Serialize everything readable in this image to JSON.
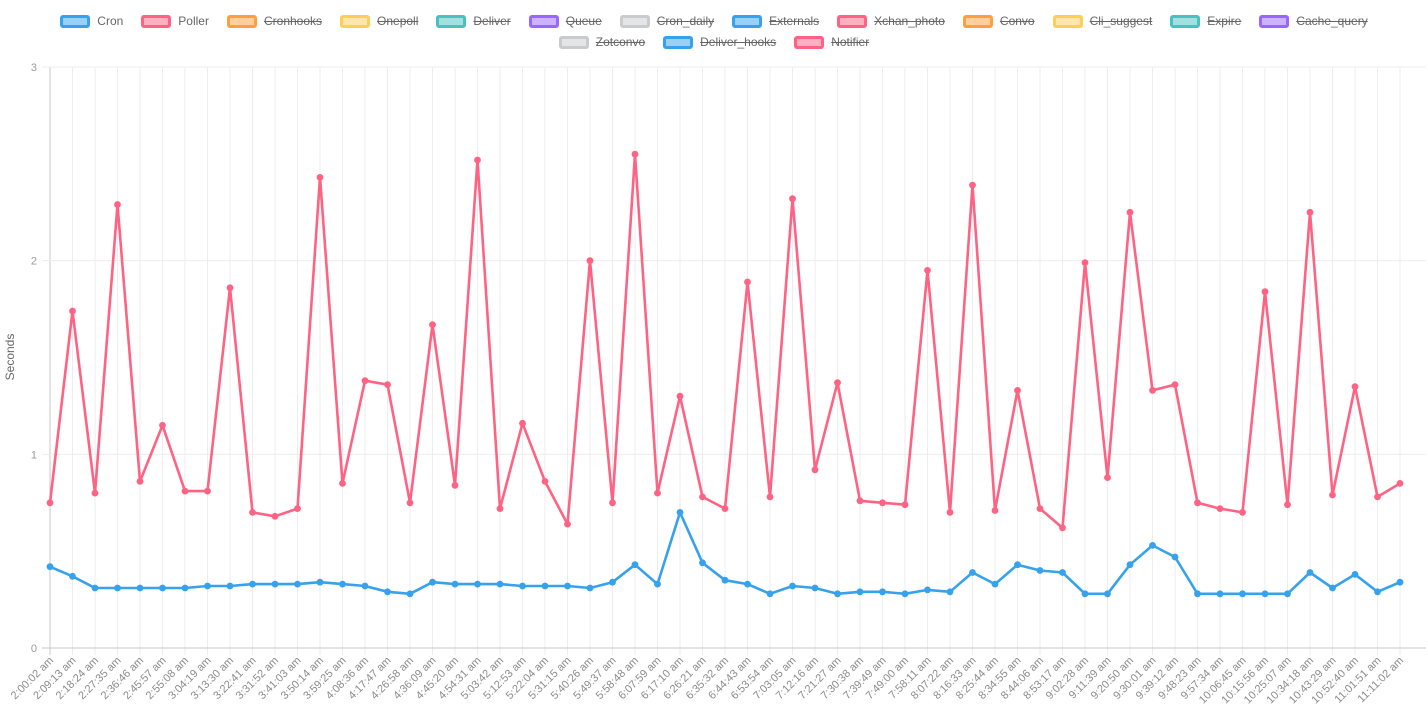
{
  "legend": {
    "palette": {
      "blue": {
        "border": "#36A2EB",
        "fill": "#9AD0F5"
      },
      "pink": {
        "border": "#FF6384",
        "fill": "#FFB1C1"
      },
      "orange": {
        "border": "#FF9F40",
        "fill": "#FFCF9F"
      },
      "yellow": {
        "border": "#FFCE56",
        "fill": "#FFE6AA"
      },
      "teal": {
        "border": "#4BC0C0",
        "fill": "#A5DFDF"
      },
      "purple": {
        "border": "#9966FF",
        "fill": "#CCB2FF"
      },
      "grey": {
        "border": "#C9CBCF",
        "fill": "#E4E5E7"
      }
    },
    "items": [
      {
        "label": "Cron",
        "color": "blue",
        "hidden": false
      },
      {
        "label": "Poller",
        "color": "pink",
        "hidden": false
      },
      {
        "label": "Cronhooks",
        "color": "orange",
        "hidden": true
      },
      {
        "label": "Onepoll",
        "color": "yellow",
        "hidden": true
      },
      {
        "label": "Deliver",
        "color": "teal",
        "hidden": true
      },
      {
        "label": "Queue",
        "color": "purple",
        "hidden": true
      },
      {
        "label": "Cron_daily",
        "color": "grey",
        "hidden": true
      },
      {
        "label": "Externals",
        "color": "blue",
        "hidden": true
      },
      {
        "label": "Xchan_photo",
        "color": "pink",
        "hidden": true
      },
      {
        "label": "Convo",
        "color": "orange",
        "hidden": true
      },
      {
        "label": "Cli_suggest",
        "color": "yellow",
        "hidden": true
      },
      {
        "label": "Expire",
        "color": "teal",
        "hidden": true
      },
      {
        "label": "Cache_query",
        "color": "purple",
        "hidden": true
      },
      {
        "label": "Zotconvo",
        "color": "grey",
        "hidden": true
      },
      {
        "label": "Deliver_hooks",
        "color": "blue",
        "hidden": true
      },
      {
        "label": "Notifier",
        "color": "pink",
        "hidden": true
      }
    ]
  },
  "chart_data": {
    "type": "line",
    "title": "",
    "xlabel": "",
    "ylabel": "Seconds",
    "ylim": [
      0,
      3
    ],
    "yticks": [
      0,
      1,
      2,
      3
    ],
    "grid": true,
    "legend_position": "top",
    "x": [
      "2:00:02 am",
      "2:09:13 am",
      "2:18:24 am",
      "2:27:35 am",
      "2:36:46 am",
      "2:45:57 am",
      "2:55:08 am",
      "3:04:19 am",
      "3:13:30 am",
      "3:22:41 am",
      "3:31:52 am",
      "3:41:03 am",
      "3:50:14 am",
      "3:59:25 am",
      "4:08:36 am",
      "4:17:47 am",
      "4:26:58 am",
      "4:36:09 am",
      "4:45:20 am",
      "4:54:31 am",
      "5:03:42 am",
      "5:12:53 am",
      "5:22:04 am",
      "5:31:15 am",
      "5:40:26 am",
      "5:49:37 am",
      "5:58:48 am",
      "6:07:59 am",
      "6:17:10 am",
      "6:26:21 am",
      "6:35:32 am",
      "6:44:43 am",
      "6:53:54 am",
      "7:03:05 am",
      "7:12:16 am",
      "7:21:27 am",
      "7:30:38 am",
      "7:39:49 am",
      "7:49:00 am",
      "7:58:11 am",
      "8:07:22 am",
      "8:16:33 am",
      "8:25:44 am",
      "8:34:55 am",
      "8:44:06 am",
      "8:53:17 am",
      "9:02:28 am",
      "9:11:39 am",
      "9:20:50 am",
      "9:30:01 am",
      "9:39:12 am",
      "9:48:23 am",
      "9:57:34 am",
      "10:06:45 am",
      "10:15:56 am",
      "10:25:07 am",
      "10:34:18 am",
      "10:43:29 am",
      "10:52:40 am",
      "11:01:51 am",
      "11:11:02 am"
    ],
    "series": [
      {
        "name": "Cron",
        "color": "#36A2EB",
        "values": [
          0.42,
          0.37,
          0.31,
          0.31,
          0.31,
          0.31,
          0.31,
          0.32,
          0.32,
          0.33,
          0.33,
          0.33,
          0.34,
          0.33,
          0.32,
          0.29,
          0.28,
          0.34,
          0.33,
          0.33,
          0.33,
          0.32,
          0.32,
          0.32,
          0.31,
          0.34,
          0.43,
          0.33,
          0.7,
          0.44,
          0.35,
          0.33,
          0.28,
          0.32,
          0.31,
          0.28,
          0.29,
          0.29,
          0.28,
          0.3,
          0.29,
          0.39,
          0.33,
          0.43,
          0.4,
          0.39,
          0.28,
          0.28,
          0.43,
          0.53,
          0.47,
          0.28,
          0.28,
          0.28,
          0.28,
          0.28,
          0.39,
          0.31,
          0.38,
          0.29,
          0.34
        ]
      },
      {
        "name": "Poller",
        "color": "#FF6384",
        "values": [
          0.75,
          1.74,
          0.8,
          2.29,
          0.86,
          1.15,
          0.81,
          0.81,
          1.86,
          0.7,
          0.68,
          0.72,
          2.43,
          0.85,
          1.38,
          1.36,
          0.75,
          1.67,
          0.84,
          2.52,
          0.72,
          1.16,
          0.86,
          0.64,
          2.0,
          0.75,
          2.55,
          0.8,
          1.3,
          0.78,
          0.72,
          1.89,
          0.78,
          2.32,
          0.92,
          1.37,
          0.76,
          0.75,
          0.74,
          1.95,
          0.7,
          2.39,
          0.71,
          1.33,
          0.72,
          0.62,
          1.99,
          0.88,
          2.25,
          1.33,
          1.36,
          0.75,
          0.72,
          0.7,
          1.84,
          0.74,
          2.25,
          0.79,
          1.35,
          0.78,
          0.85
        ]
      }
    ],
    "hidden_series": [
      "Cronhooks",
      "Onepoll",
      "Deliver",
      "Queue",
      "Cron_daily",
      "Externals",
      "Xchan_photo",
      "Convo",
      "Cli_suggest",
      "Expire",
      "Cache_query",
      "Zotconvo",
      "Deliver_hooks",
      "Notifier"
    ]
  },
  "style": {
    "grid_color": "#ededed",
    "axis_line_color": "#c8c8c8",
    "tick_color": "#d6d6d6",
    "background": "#ffffff"
  }
}
